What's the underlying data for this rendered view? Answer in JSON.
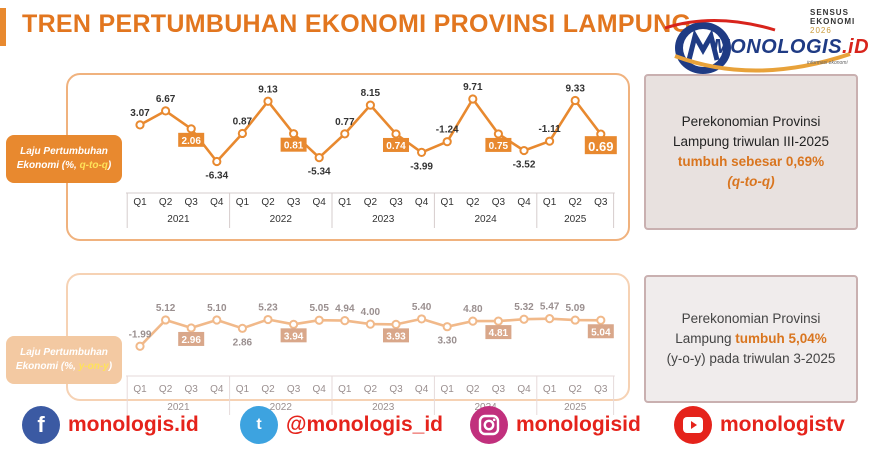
{
  "title": "TREN PERTUMBUHAN EKONOMI PROVINSI LAMPUNG",
  "logo": {
    "sensus_line1": "SENSUS",
    "sensus_line2": "EKONOMI",
    "sensus_year": "2026",
    "brand": "MONOLOGIS",
    "brand_suffix": ".iD",
    "tagline": "informasi ekonomi"
  },
  "chart_data": [
    {
      "type": "line",
      "series_label_line1": "Laju Pertumbuhan",
      "series_label_line2": "Ekonomi (%, ",
      "series_label_highlight": "q-to-q",
      "series_label_tail": ")",
      "categories": [
        "Q1",
        "Q2",
        "Q3",
        "Q4",
        "Q1",
        "Q2",
        "Q3",
        "Q4",
        "Q1",
        "Q2",
        "Q3",
        "Q4",
        "Q1",
        "Q2",
        "Q3",
        "Q4",
        "Q1",
        "Q2",
        "Q3"
      ],
      "years": [
        "2021",
        "2022",
        "2023",
        "2024",
        "2025"
      ],
      "values": [
        3.07,
        6.67,
        2.06,
        -6.34,
        0.87,
        9.13,
        0.81,
        -5.34,
        0.77,
        8.15,
        0.74,
        -3.99,
        -1.24,
        9.71,
        0.75,
        -3.52,
        -1.11,
        9.33,
        0.69
      ],
      "labels": [
        "3.07",
        "6.67",
        "2.06",
        "-6.34",
        "0.87",
        "9.13",
        "0.81",
        "-5.34",
        "0.77",
        "8.15",
        "0.74",
        "-3.99",
        "-1.24",
        "9.71",
        "0.75",
        "-3.52",
        "-1.11",
        "9.33",
        "0.69"
      ],
      "boxed": [
        2,
        6,
        10,
        14,
        18
      ],
      "line_color": "#e8892f",
      "ylim": [
        -8,
        11
      ]
    },
    {
      "type": "line",
      "series_label_line1": "Laju Pertumbuhan",
      "series_label_line2": "Ekonomi (%, ",
      "series_label_highlight": "y-on-y",
      "series_label_tail": ")",
      "categories": [
        "Q1",
        "Q2",
        "Q3",
        "Q4",
        "Q1",
        "Q2",
        "Q3",
        "Q4",
        "Q1",
        "Q2",
        "Q3",
        "Q4",
        "Q1",
        "Q2",
        "Q3",
        "Q4",
        "Q1",
        "Q2",
        "Q3"
      ],
      "years": [
        "2021",
        "2022",
        "2023",
        "2024",
        "2025"
      ],
      "values": [
        -1.99,
        5.12,
        2.96,
        5.1,
        2.86,
        5.23,
        3.94,
        5.05,
        4.94,
        4.0,
        3.93,
        5.4,
        3.3,
        4.8,
        4.81,
        5.32,
        5.47,
        5.09,
        5.04
      ],
      "labels": [
        "-1.99",
        "5.12",
        "2.96",
        "5.10",
        "2.86",
        "5.23",
        "3.94",
        "5.05",
        "4.94",
        "4.00",
        "3.93",
        "5.40",
        "3.30",
        "4.80",
        "4.81",
        "5.32",
        "5.47",
        "5.09",
        "5.04"
      ],
      "boxed": [
        2,
        6,
        10,
        14,
        18
      ],
      "line_color": "#f1b98a",
      "ylim": [
        -3,
        7
      ]
    }
  ],
  "note_qtq": {
    "line1": "Perekonomian Provinsi",
    "line2": "Lampung triwulan III-2025",
    "line3": "tumbuh sebesar 0,69%",
    "line4": "(q-to-q)"
  },
  "note_yoy": {
    "line1": "Perekonomian Provinsi",
    "line2a": "Lampung ",
    "line2b": "tumbuh 5,04%",
    "line3": "(y-o-y) pada triwulan 3-2025"
  },
  "social": {
    "facebook": "monologis.id",
    "twitter": "@monologis_id",
    "instagram": "monologisid",
    "youtube": "monologistv"
  },
  "colors": {
    "orange": "#e8892f",
    "title": "#e2761f",
    "red": "#e5231b"
  }
}
